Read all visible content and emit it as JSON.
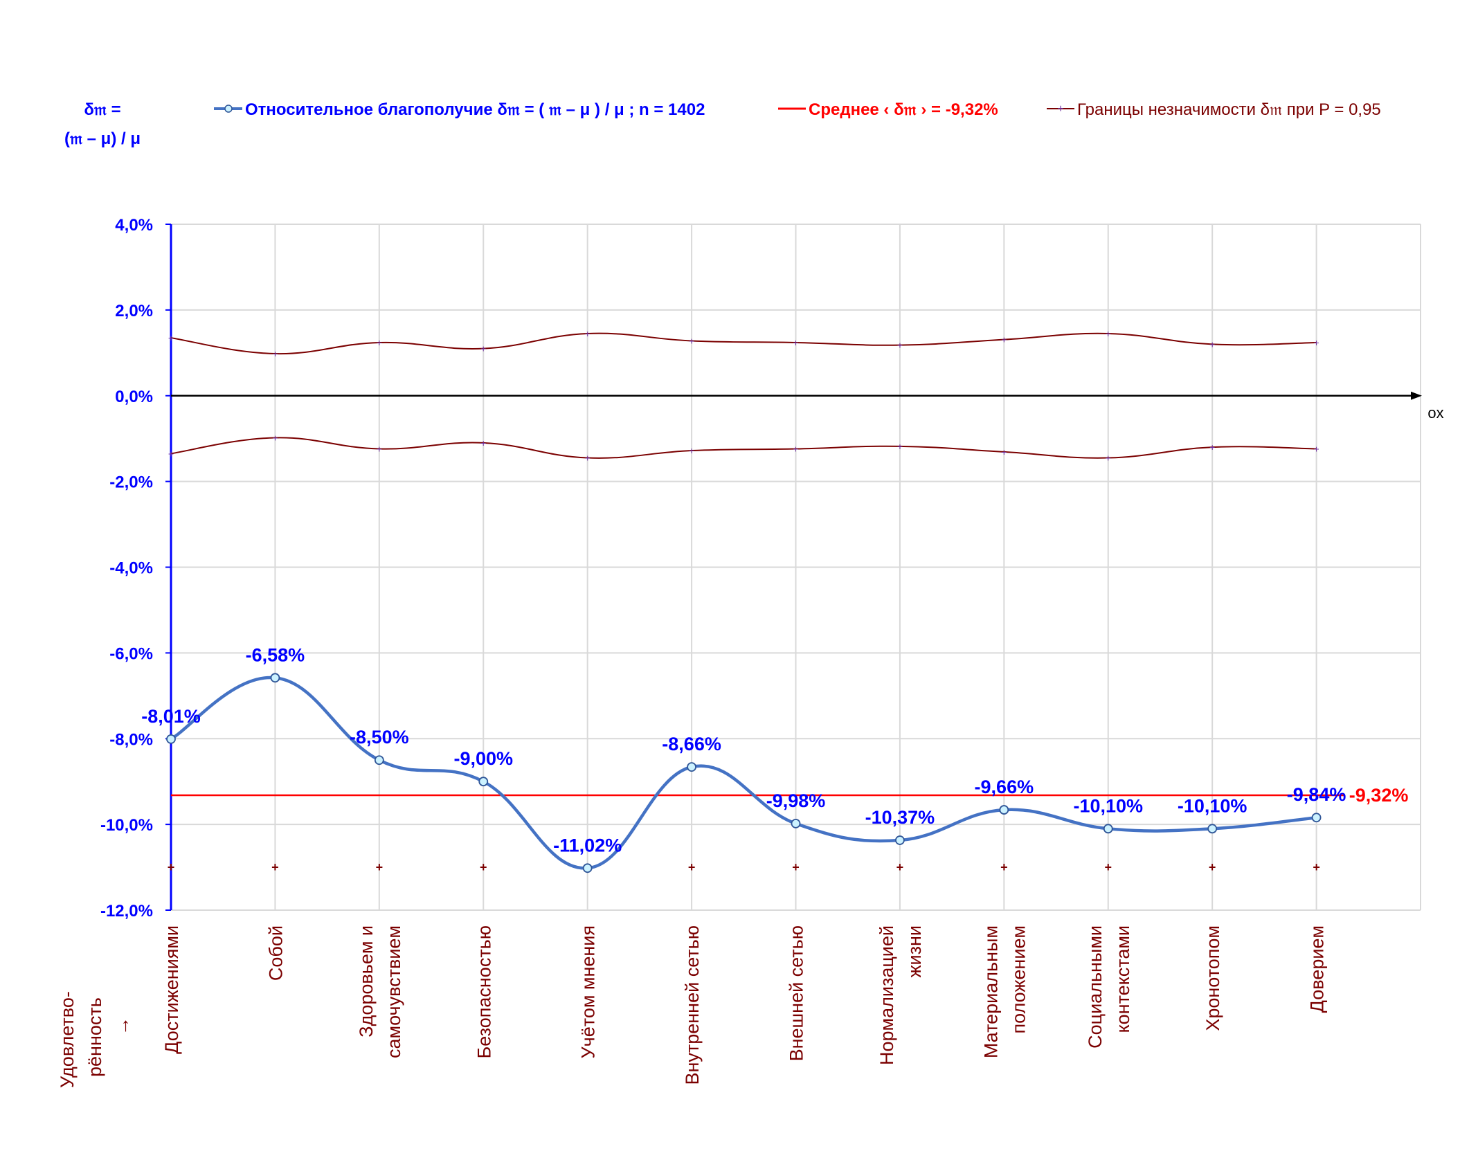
{
  "chart_data": {
    "type": "line",
    "y_axis_title": [
      "δ𝔪 =",
      "(𝔪 – μ) / μ"
    ],
    "x_axis_name": "ox",
    "left_label": [
      "Удовлетво-",
      "рённость",
      "→"
    ],
    "ylim": [
      -12,
      4
    ],
    "y_ticks": [
      "4,0%",
      "2,0%",
      "0,0%",
      "-2,0%",
      "-4,0%",
      "-6,0%",
      "-8,0%",
      "-10,0%",
      "-12,0%"
    ],
    "y_tick_values": [
      4,
      2,
      0,
      -2,
      -4,
      -6,
      -8,
      -10,
      -12
    ],
    "grid": true,
    "legend_position": "top",
    "categories": [
      [
        "Достижениями"
      ],
      [
        "Собой"
      ],
      [
        "Здоровьем и",
        "самочувствием"
      ],
      [
        "Безопасностью"
      ],
      [
        "Учётом мнения"
      ],
      [
        "Внутренней сетью"
      ],
      [
        "Внешней сетью"
      ],
      [
        "Нормализацией",
        "жизни"
      ],
      [
        "Материальным",
        "положением"
      ],
      [
        "Социальными",
        "контекстами"
      ],
      [
        "Хронотопом"
      ],
      [
        "Доверием"
      ]
    ],
    "series": [
      {
        "name": "Относительное благополучие δ𝔪 = ( 𝔪 – μ ) / μ ; n = 1402",
        "color": "#4472C4",
        "values": [
          -8.01,
          -6.58,
          -8.5,
          -9.0,
          -11.02,
          -8.66,
          -9.98,
          -10.37,
          -9.66,
          -10.1,
          -10.1,
          -9.84
        ],
        "labels": [
          "-8,01%",
          "-6,58%",
          "-8,50%",
          "-9,00%",
          "-11,02%",
          "-8,66%",
          "-9,98%",
          "-10,37%",
          "-9,66%",
          "-10,10%",
          "-10,10%",
          "-9,84%"
        ],
        "label_color": "#0000FF"
      },
      {
        "name": "Среднее ‹ δ𝔪 › = -9,32%",
        "color": "#FF0000",
        "value": -9.32,
        "label": "-9,32%"
      },
      {
        "name": "Границы незначимости δ𝔪 при P = 0,95",
        "color": "#7B0000",
        "upper": [
          1.35,
          0.98,
          1.24,
          1.1,
          1.45,
          1.28,
          1.24,
          1.18,
          1.31,
          1.45,
          1.2,
          1.24
        ],
        "lower": [
          -1.35,
          -0.98,
          -1.24,
          -1.1,
          -1.45,
          -1.28,
          -1.24,
          -1.18,
          -1.31,
          -1.45,
          -1.2,
          -1.24
        ]
      }
    ],
    "marker_row_value": -11.0
  },
  "colors": {
    "axis_text": "#0000FF",
    "category_text": "#7B0000",
    "grid": "#D9D9D9",
    "zero_axis": "#000000"
  }
}
